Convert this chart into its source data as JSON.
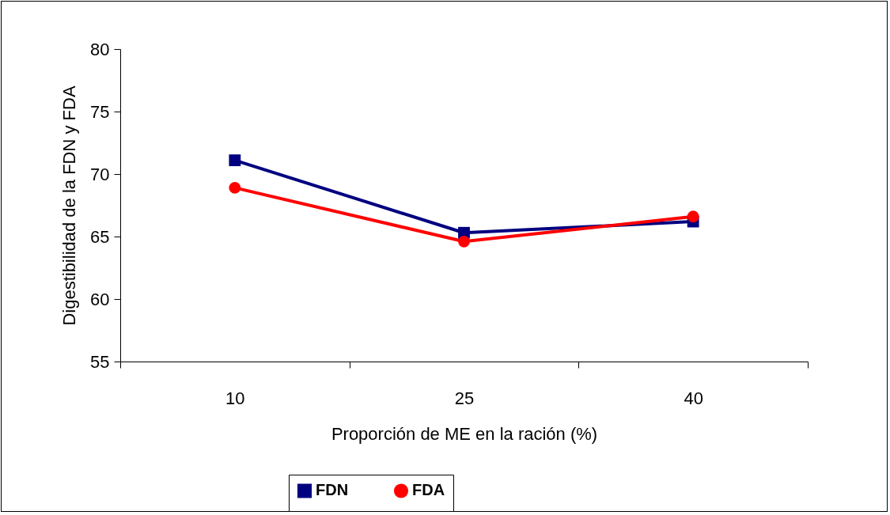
{
  "chart_data": {
    "type": "line",
    "xlabel": "Proporción de ME en la ración (%)",
    "ylabel": "Digestibilidad de la FDN y FDA",
    "categories": [
      "10",
      "25",
      "40"
    ],
    "series": [
      {
        "name": "FDN",
        "color": "#000080",
        "marker": "square",
        "values": [
          71.1,
          65.3,
          66.2
        ]
      },
      {
        "name": "FDA",
        "color": "#ff0000",
        "marker": "circle",
        "values": [
          68.9,
          64.6,
          66.6
        ]
      }
    ],
    "ylim": [
      55,
      80
    ],
    "yticks": [
      55,
      60,
      65,
      70,
      75,
      80
    ],
    "grid": false,
    "legend": "bottom",
    "line_style": "solid"
  }
}
